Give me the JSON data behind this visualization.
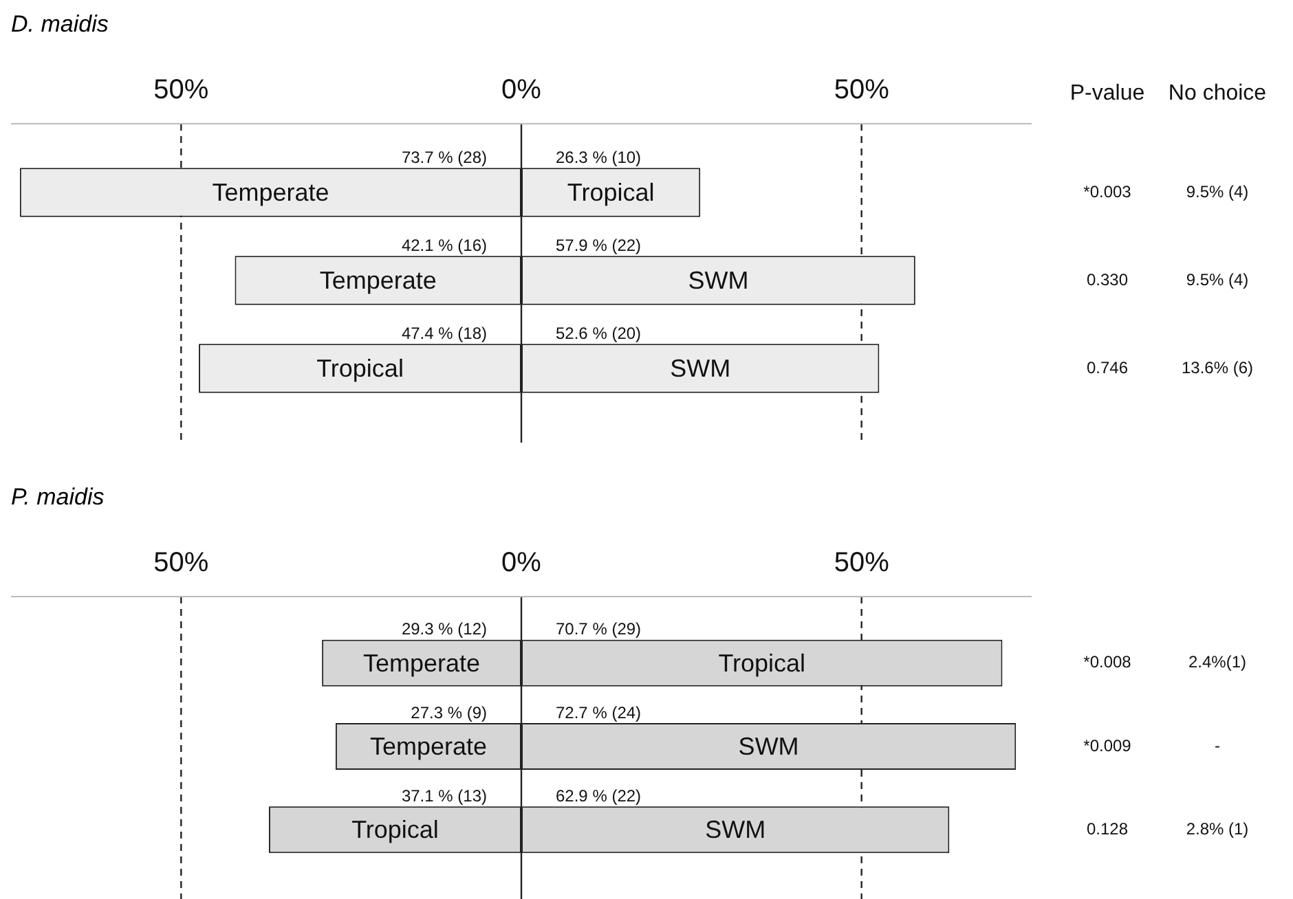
{
  "chart_data": [
    {
      "type": "bar",
      "title": "D. maidis",
      "orientation": "horizontal",
      "categories": [
        null,
        null,
        null
      ],
      "series": [
        {
          "name": "Temperate",
          "color": "#ececec",
          "values": [
            73.7,
            42.1,
            null
          ],
          "base": [
            -73.7,
            -42.1,
            null
          ],
          "value_labels": [
            "73.7 % (28)",
            "42.1 % (16)",
            null
          ]
        },
        {
          "name": "Tropical",
          "color": "#ececec",
          "values": [
            26.3,
            null,
            47.4
          ],
          "base": [
            0,
            null,
            -47.4
          ],
          "value_labels": [
            "26.3 % (10)",
            null,
            "47.4 % (18)"
          ]
        },
        {
          "name": "SWM",
          "color": "#ececec",
          "values": [
            null,
            57.9,
            52.6
          ],
          "base": [
            null,
            0,
            0
          ],
          "value_labels": [
            null,
            "57.9 % (22)",
            "52.6 % (20)"
          ]
        }
      ],
      "xlim": [
        -75,
        75
      ],
      "xticks": [
        {
          "value": -50,
          "label": "50%"
        },
        {
          "value": 0,
          "label": "0%"
        },
        {
          "value": 50,
          "label": "50%"
        }
      ],
      "grid": "x",
      "legend": false,
      "tick_labels": "x",
      "annotations": [
        "P-value",
        "No choice",
        "*0.003",
        "9.5% (4)",
        "0.330",
        "9.5% (4)",
        "0.746",
        "13.6% (6)"
      ]
    },
    {
      "type": "bar",
      "title": "P. maidis",
      "orientation": "horizontal",
      "categories": [
        null,
        null,
        null
      ],
      "series": [
        {
          "name": "Temperate",
          "color": "#d6d6d6",
          "values": [
            29.3,
            27.3,
            null
          ],
          "base": [
            -29.3,
            -27.3,
            null
          ],
          "value_labels": [
            "29.3 % (12)",
            "27.3 % (9)",
            null
          ]
        },
        {
          "name": "Tropical",
          "color": "#d6d6d6",
          "values": [
            70.7,
            null,
            37.1
          ],
          "base": [
            0,
            null,
            -37.1
          ],
          "value_labels": [
            "70.7 % (29)",
            null,
            "37.1 % (13)"
          ]
        },
        {
          "name": "SWM",
          "color": "#d6d6d6",
          "values": [
            null,
            72.7,
            62.9
          ],
          "base": [
            null,
            0,
            0
          ],
          "value_labels": [
            null,
            "72.7 % (24)",
            "62.9 % (22)"
          ]
        }
      ],
      "xlim": [
        -75,
        75
      ],
      "xticks": [
        {
          "value": -50,
          "label": "50%"
        },
        {
          "value": 0,
          "label": "0%"
        },
        {
          "value": 50,
          "label": "50%"
        }
      ],
      "grid": "x",
      "legend": false,
      "tick_labels": "x",
      "annotations": [
        "*0.008",
        "2.4%(1)",
        "*0.009",
        "-",
        "0.128",
        "2.8% (1)"
      ]
    }
  ]
}
